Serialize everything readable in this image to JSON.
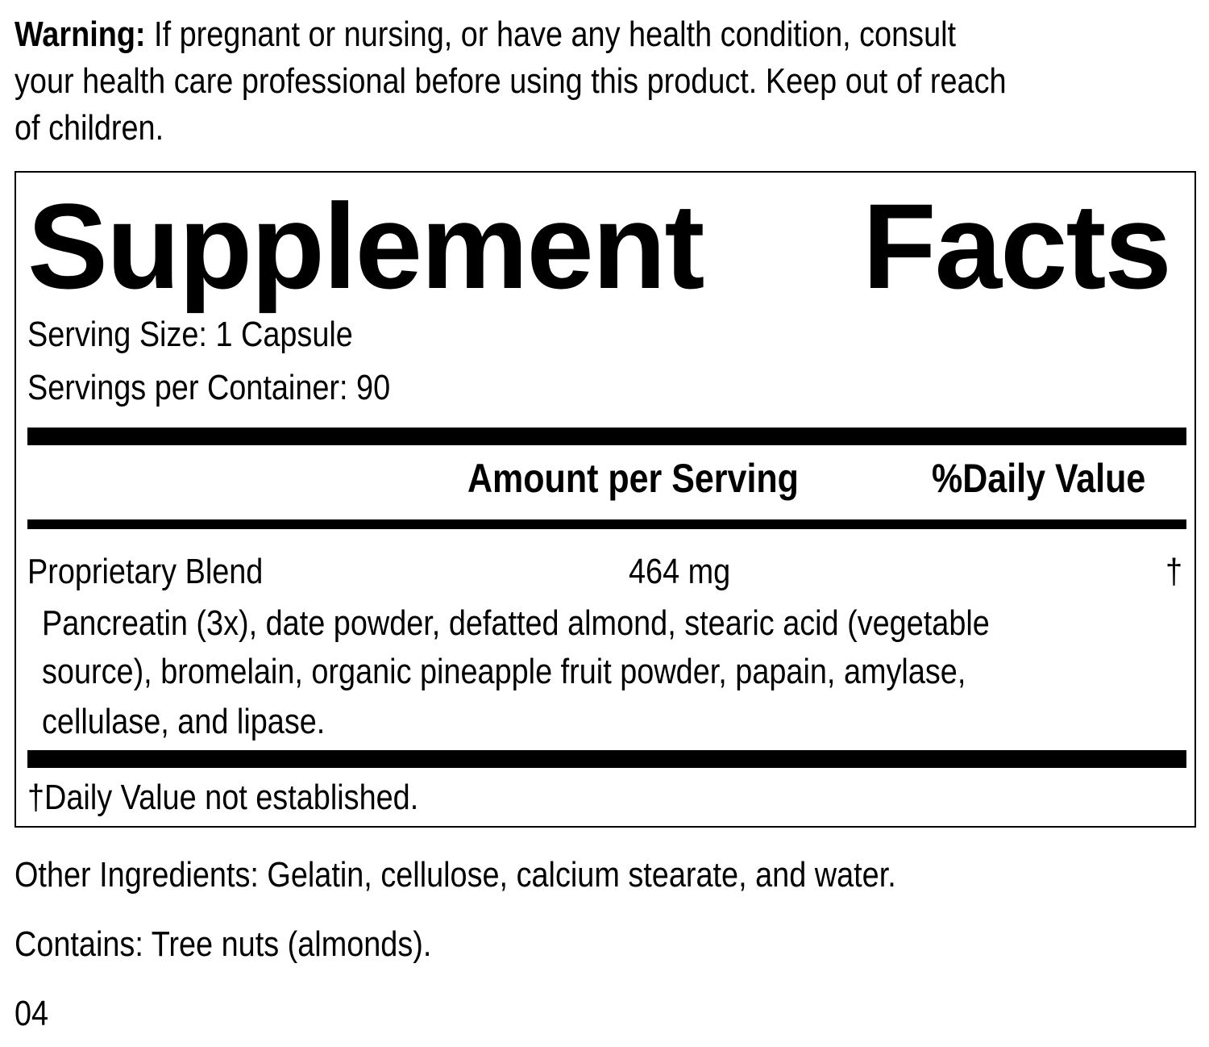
{
  "warning": {
    "label": "Warning:",
    "text": " If pregnant or nursing, or have any health condition, consult",
    "line2": "your health care professional before using this product. Keep out of reach",
    "line3": "of children."
  },
  "facts": {
    "title_word1": "Supplement",
    "title_word2": "Facts",
    "serving_size": "Serving Size: 1 Capsule",
    "servings_per_container": "Servings per Container: 90",
    "col_amount": "Amount per Serving",
    "col_dv": "%Daily Value",
    "rows": [
      {
        "name": "Proprietary Blend",
        "amount": "464 mg",
        "dv": "†",
        "ingredients": [
          "Pancreatin (3x), date powder, defatted almond, stearic acid (vegetable",
          "source), bromelain, organic pineapple fruit powder, papain, amylase,",
          "cellulase, and lipase."
        ]
      }
    ],
    "footnote": "†Daily Value not established."
  },
  "other_ingredients": "Other Ingredients: Gelatin, cellulose, calcium stearate, and water.",
  "contains": "Contains: Tree nuts (almonds).",
  "code": "04"
}
